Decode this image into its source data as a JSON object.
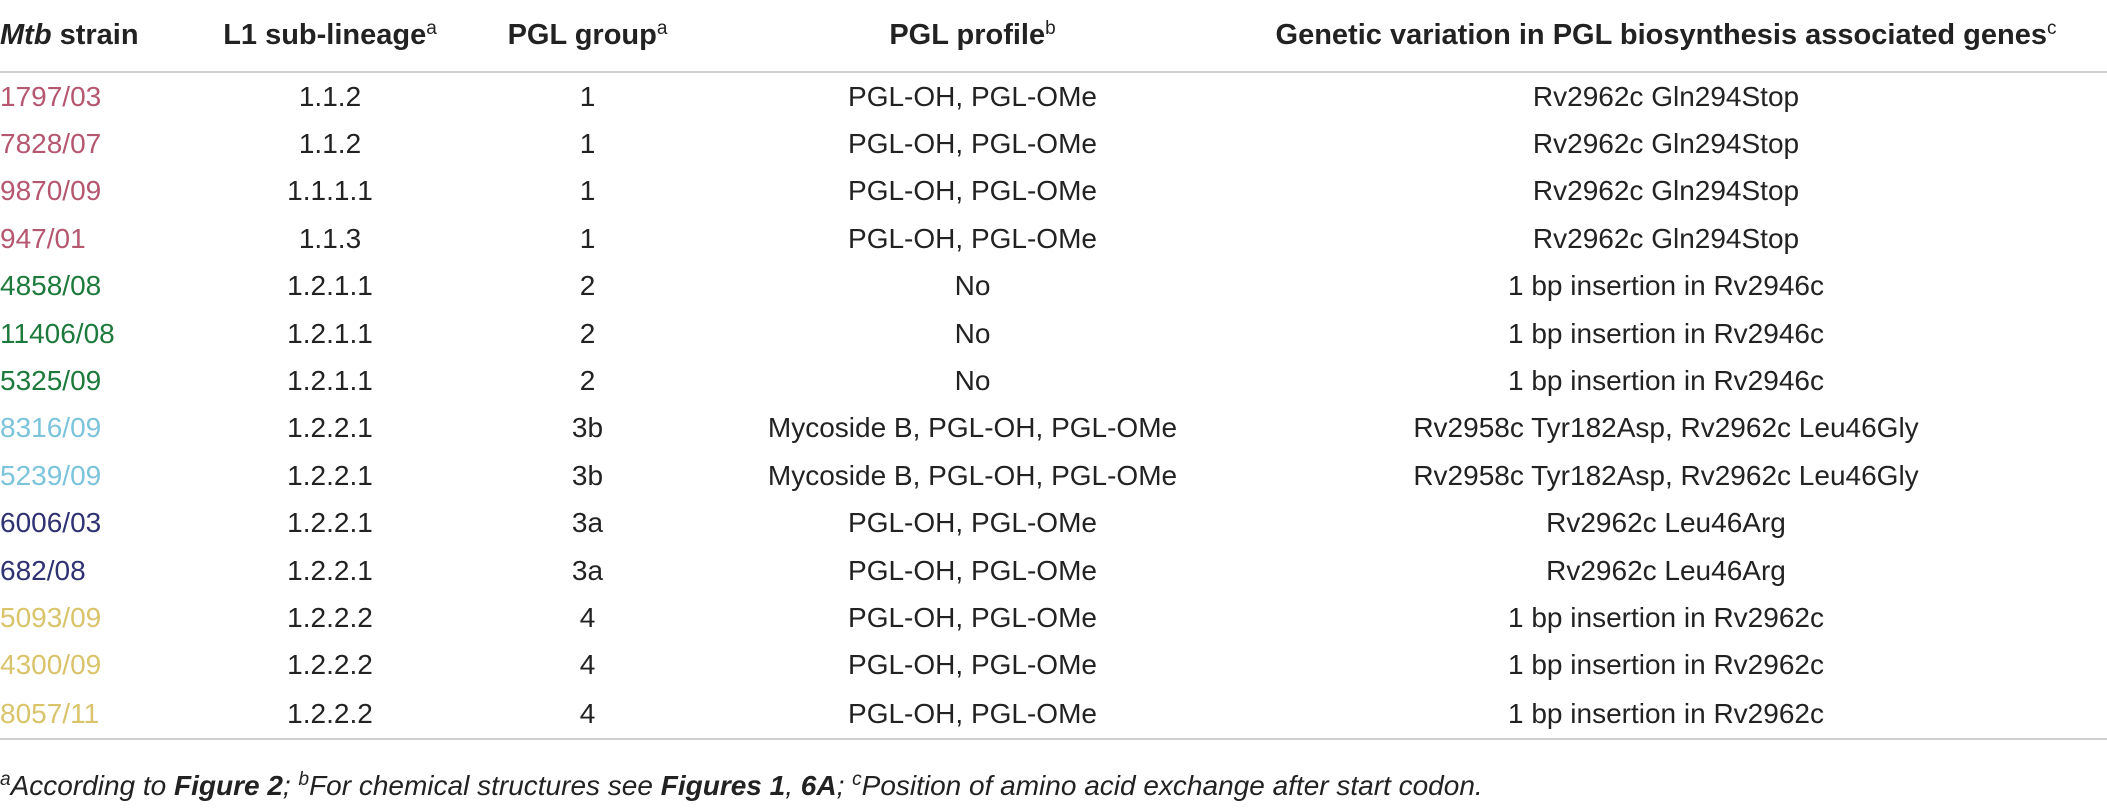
{
  "header": {
    "col1_italic": "Mtb",
    "col1_rest": " strain",
    "col2": "L1 sub-lineage",
    "col2_sup": "a",
    "col3": "PGL group",
    "col3_sup": "a",
    "col4": "PGL profile",
    "col4_sup": "b",
    "col5": "Genetic variation in PGL biosynthesis associated genes",
    "col5_sup": "c"
  },
  "rows": [
    {
      "strain": "1797/03",
      "color": "#b5576e",
      "sublineage": "1.1.2",
      "group": "1",
      "profile": "PGL-OH, PGL-OMe",
      "variation": "Rv2962c Gln294Stop"
    },
    {
      "strain": "7828/07",
      "color": "#b5576e",
      "sublineage": "1.1.2",
      "group": "1",
      "profile": "PGL-OH, PGL-OMe",
      "variation": "Rv2962c Gln294Stop"
    },
    {
      "strain": "9870/09",
      "color": "#b5576e",
      "sublineage": "1.1.1.1",
      "group": "1",
      "profile": "PGL-OH, PGL-OMe",
      "variation": "Rv2962c Gln294Stop"
    },
    {
      "strain": "947/01",
      "color": "#b5576e",
      "sublineage": "1.1.3",
      "group": "1",
      "profile": "PGL-OH, PGL-OMe",
      "variation": "Rv2962c Gln294Stop"
    },
    {
      "strain": "4858/08",
      "color": "#1e7a3c",
      "sublineage": "1.2.1.1",
      "group": "2",
      "profile": "No",
      "variation": "1 bp insertion in Rv2946c"
    },
    {
      "strain": "11406/08",
      "color": "#1e7a3c",
      "sublineage": "1.2.1.1",
      "group": "2",
      "profile": "No",
      "variation": "1 bp insertion in Rv2946c"
    },
    {
      "strain": "5325/09",
      "color": "#1e7a3c",
      "sublineage": "1.2.1.1",
      "group": "2",
      "profile": "No",
      "variation": "1 bp insertion in Rv2946c"
    },
    {
      "strain": "8316/09",
      "color": "#7cc3dc",
      "sublineage": "1.2.2.1",
      "group": "3b",
      "profile": "Mycoside B, PGL-OH, PGL-OMe",
      "variation": "Rv2958c Tyr182Asp, Rv2962c Leu46Gly"
    },
    {
      "strain": "5239/09",
      "color": "#7cc3dc",
      "sublineage": "1.2.2.1",
      "group": "3b",
      "profile": "Mycoside B, PGL-OH, PGL-OMe",
      "variation": "Rv2958c Tyr182Asp, Rv2962c Leu46Gly"
    },
    {
      "strain": "6006/03",
      "color": "#2e3272",
      "sublineage": "1.2.2.1",
      "group": "3a",
      "profile": "PGL-OH, PGL-OMe",
      "variation": "Rv2962c Leu46Arg"
    },
    {
      "strain": "682/08",
      "color": "#2e3272",
      "sublineage": "1.2.2.1",
      "group": "3a",
      "profile": "PGL-OH, PGL-OMe",
      "variation": "Rv2962c Leu46Arg"
    },
    {
      "strain": "5093/09",
      "color": "#d9c36b",
      "sublineage": "1.2.2.2",
      "group": "4",
      "profile": "PGL-OH, PGL-OMe",
      "variation": "1 bp insertion in Rv2962c"
    },
    {
      "strain": "4300/09",
      "color": "#d9c36b",
      "sublineage": "1.2.2.2",
      "group": "4",
      "profile": "PGL-OH, PGL-OMe",
      "variation": "1 bp insertion in Rv2962c"
    },
    {
      "strain": "8057/11",
      "color": "#d9c36b",
      "sublineage": "1.2.2.2",
      "group": "4",
      "profile": "PGL-OH, PGL-OMe",
      "variation": "1 bp insertion in Rv2962c"
    }
  ],
  "footnote": {
    "a_mark": "a",
    "a_text": "According to ",
    "a_ref": "Figure 2",
    "sep1": "; ",
    "b_mark": "b",
    "b_text": "For chemical structures see ",
    "b_ref": "Figures 1",
    "b_sep": ", ",
    "b_ref2": "6A",
    "sep2": "; ",
    "c_mark": "c",
    "c_text": "Position of amino acid exchange after start codon."
  }
}
